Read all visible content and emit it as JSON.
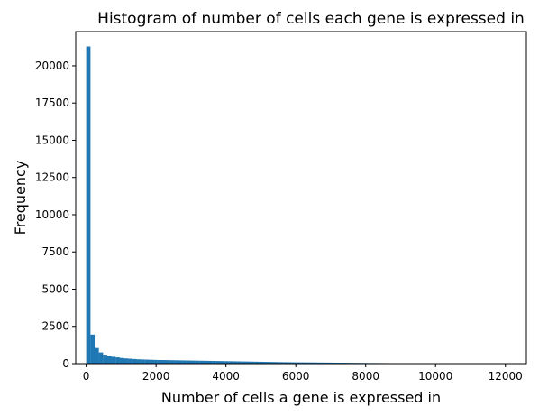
{
  "chart_data": {
    "type": "bar",
    "title": "Histogram of number of cells each gene is expressed in",
    "xlabel": "Number of cells a gene is expressed in",
    "ylabel": "Frequency",
    "xlim": [
      -300,
      12600
    ],
    "ylim": [
      0,
      22300
    ],
    "x_ticks": [
      0,
      2000,
      4000,
      6000,
      8000,
      10000,
      12000
    ],
    "y_ticks": [
      0,
      2500,
      5000,
      7500,
      10000,
      12500,
      15000,
      17500,
      20000
    ],
    "bin_width": 120,
    "bin_start": 0,
    "grid": false,
    "legend": "none",
    "bar_color": "#1f77b4",
    "bin_counts": [
      21300,
      1950,
      1050,
      750,
      600,
      520,
      460,
      420,
      380,
      350,
      330,
      310,
      290,
      280,
      270,
      260,
      250,
      245,
      240,
      235,
      230,
      225,
      220,
      215,
      210,
      205,
      200,
      195,
      190,
      185,
      180,
      175,
      170,
      165,
      160,
      155,
      150,
      145,
      140,
      135,
      130,
      125,
      120,
      115,
      110,
      105,
      100,
      95,
      90,
      88,
      85,
      82,
      80,
      78,
      75,
      72,
      70,
      68,
      65,
      62,
      60,
      58,
      55,
      52,
      50,
      48,
      45,
      42,
      40,
      38,
      36,
      34,
      32,
      30,
      28,
      26,
      24,
      22,
      20,
      18,
      17,
      16,
      15,
      14,
      13,
      12,
      11,
      10,
      9,
      8,
      7,
      6,
      5,
      4,
      4,
      3,
      3,
      2,
      2,
      2
    ]
  }
}
